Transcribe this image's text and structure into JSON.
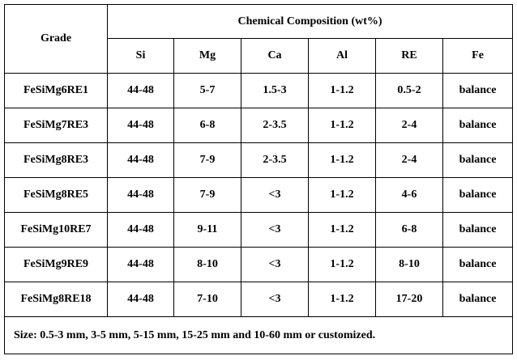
{
  "header": {
    "grade": "Grade",
    "group": "Chemical Composition (wt%)",
    "columns": [
      "Si",
      "Mg",
      "Ca",
      "Al",
      "RE",
      "Fe"
    ]
  },
  "rows": [
    [
      "FeSiMg6RE1",
      "44-48",
      "5-7",
      "1.5-3",
      "1-1.2",
      "0.5-2",
      "balance"
    ],
    [
      "FeSiMg7RE3",
      "44-48",
      "6-8",
      "2-3.5",
      "1-1.2",
      "2-4",
      "balance"
    ],
    [
      "FeSiMg8RE3",
      "44-48",
      "7-9",
      "2-3.5",
      "1-1.2",
      "2-4",
      "balance"
    ],
    [
      "FeSiMg8RE5",
      "44-48",
      "7-9",
      "<3",
      "1-1.2",
      "4-6",
      "balance"
    ],
    [
      "FeSiMg10RE7",
      "44-48",
      "9-11",
      "<3",
      "1-1.2",
      "6-8",
      "balance"
    ],
    [
      "FeSiMg9RE9",
      "44-48",
      "8-10",
      "<3",
      "1-1.2",
      "8-10",
      "balance"
    ],
    [
      "FeSiMg8RE18",
      "44-48",
      "7-10",
      "<3",
      "1-1.2",
      "17-20",
      "balance"
    ]
  ],
  "footer": "Size: 0.5-3 mm, 3-5 mm, 5-15 mm, 15-25 mm and 10-60 mm or customized."
}
